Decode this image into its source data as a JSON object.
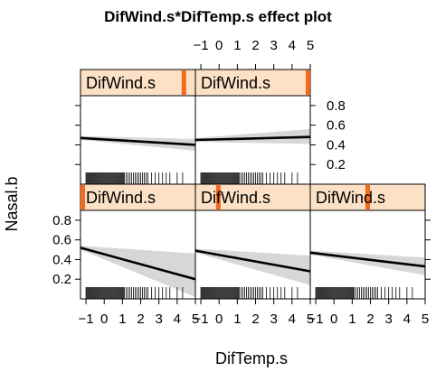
{
  "chart_data": {
    "type": "line",
    "title": "DifWind.s*DifTemp.s effect plot",
    "xlabel": "DifTemp.s",
    "ylabel": "Nasal.b",
    "strip_label": "DifWind.s",
    "xlim": [
      -1.3,
      5.0
    ],
    "ylim": [
      0.0,
      0.9
    ],
    "xticks": [
      -1,
      0,
      1,
      2,
      3,
      4,
      5
    ],
    "yticks": [
      0.2,
      0.4,
      0.6,
      0.8
    ],
    "colors": {
      "strip": "#fde1c6",
      "strip_bar": "#f26a1b",
      "band": "#d0d0d0",
      "line": "#000000"
    },
    "rug_x": [
      -1.0,
      -0.95,
      -0.9,
      -0.85,
      -0.8,
      -0.75,
      -0.7,
      -0.65,
      -0.6,
      -0.55,
      -0.5,
      -0.45,
      -0.4,
      -0.35,
      -0.3,
      -0.25,
      -0.2,
      -0.15,
      -0.1,
      -0.05,
      0.0,
      0.05,
      0.1,
      0.15,
      0.2,
      0.25,
      0.3,
      0.35,
      0.4,
      0.45,
      0.5,
      0.55,
      0.6,
      0.65,
      0.7,
      0.75,
      0.8,
      0.85,
      0.9,
      0.95,
      1.0,
      1.05,
      1.1,
      1.2,
      1.3,
      1.4,
      1.5,
      1.6,
      1.7,
      1.8,
      1.9,
      2.0,
      2.1,
      2.2,
      2.3,
      2.4,
      2.6,
      2.8,
      3.0,
      3.2,
      3.4,
      3.6,
      4.0,
      4.3
    ],
    "panels": [
      {
        "row": 0,
        "col": 0,
        "wind_level": 0.9,
        "x": [
          -1.3,
          5.0
        ],
        "fit": [
          0.47,
          0.4
        ],
        "lower": [
          0.45,
          0.34
        ],
        "upper": [
          0.49,
          0.46
        ]
      },
      {
        "row": 0,
        "col": 1,
        "wind_level": 1.0,
        "x": [
          -1.3,
          5.0
        ],
        "fit": [
          0.45,
          0.48
        ],
        "lower": [
          0.43,
          0.41
        ],
        "upper": [
          0.47,
          0.56
        ]
      },
      {
        "row": 1,
        "col": 0,
        "wind_level": 0.0,
        "x": [
          -1.3,
          5.0
        ],
        "fit": [
          0.52,
          0.2
        ],
        "lower": [
          0.5,
          0.02
        ],
        "upper": [
          0.54,
          0.46
        ]
      },
      {
        "row": 1,
        "col": 1,
        "wind_level": 0.2,
        "x": [
          -1.3,
          5.0
        ],
        "fit": [
          0.49,
          0.28
        ],
        "lower": [
          0.47,
          0.14
        ],
        "upper": [
          0.51,
          0.44
        ]
      },
      {
        "row": 1,
        "col": 2,
        "wind_level": 0.5,
        "x": [
          -1.3,
          5.0
        ],
        "fit": [
          0.47,
          0.33
        ],
        "lower": [
          0.45,
          0.24
        ],
        "upper": [
          0.49,
          0.42
        ]
      }
    ]
  }
}
